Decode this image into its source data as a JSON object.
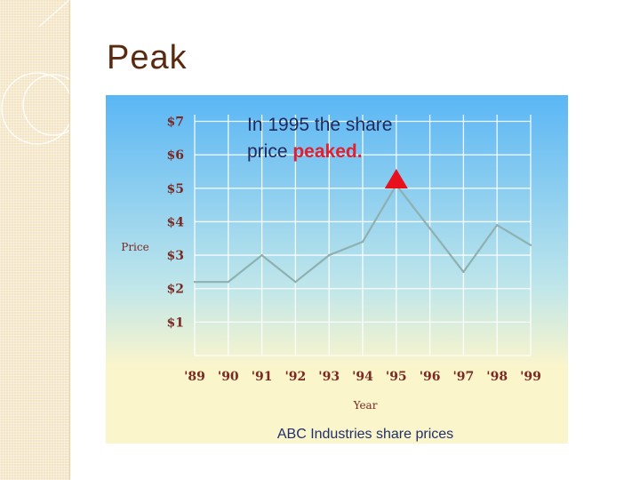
{
  "slide": {
    "title": "Peak"
  },
  "chart_data": {
    "type": "line",
    "title": "ABC Industries share prices",
    "xlabel": "Year",
    "ylabel": "Price",
    "categories": [
      "'89",
      "'90",
      "'91",
      "'92",
      "'93",
      "'94",
      "'95",
      "'96",
      "'97",
      "'98",
      "'99"
    ],
    "y_tick_labels": [
      "$1",
      "$2",
      "$3",
      "$4",
      "$5",
      "$6",
      "$7"
    ],
    "y_tick_values": [
      1,
      2,
      3,
      4,
      5,
      6,
      7
    ],
    "ylim": [
      0,
      7.2
    ],
    "grid": true,
    "series": [
      {
        "values": [
          2.2,
          2.2,
          3.0,
          2.2,
          3.0,
          3.4,
          5.1,
          3.8,
          2.5,
          3.9,
          3.3
        ]
      }
    ],
    "annotation": {
      "line1": "In 1995 the share",
      "line2_prefix": "price ",
      "line2_highlight": "peaked.",
      "category": "'95",
      "value": 5.1
    },
    "colors": {
      "line": "#8fb0b0",
      "grid": "#ffffff",
      "axis_text": "#7a2a22",
      "marker": "#e8101c",
      "annotation_text": "#222a5c",
      "annotation_highlight": "#e02030",
      "title_text": "#20306a",
      "bg_top": "#5ab6f5",
      "bg_mid": "#bfe6ea",
      "bg_bottom": "#fbf5cc"
    }
  }
}
